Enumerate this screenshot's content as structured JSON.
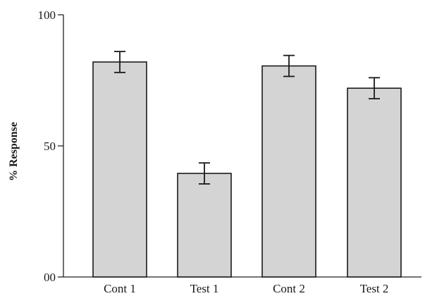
{
  "chart_data": {
    "type": "bar",
    "title": "",
    "xlabel": "",
    "ylabel": "% Response",
    "categories": [
      "Cont 1",
      "Test 1",
      "Cont 2",
      "Test 2"
    ],
    "values": [
      82,
      39.5,
      80.5,
      72
    ],
    "error": [
      4,
      4,
      4,
      4
    ],
    "ylim": [
      0,
      100
    ],
    "yticks": [
      0,
      50,
      100
    ],
    "ytick_labels": [
      "00",
      "50",
      "100"
    ],
    "bar_color": "#d4d4d4",
    "grid": false
  }
}
